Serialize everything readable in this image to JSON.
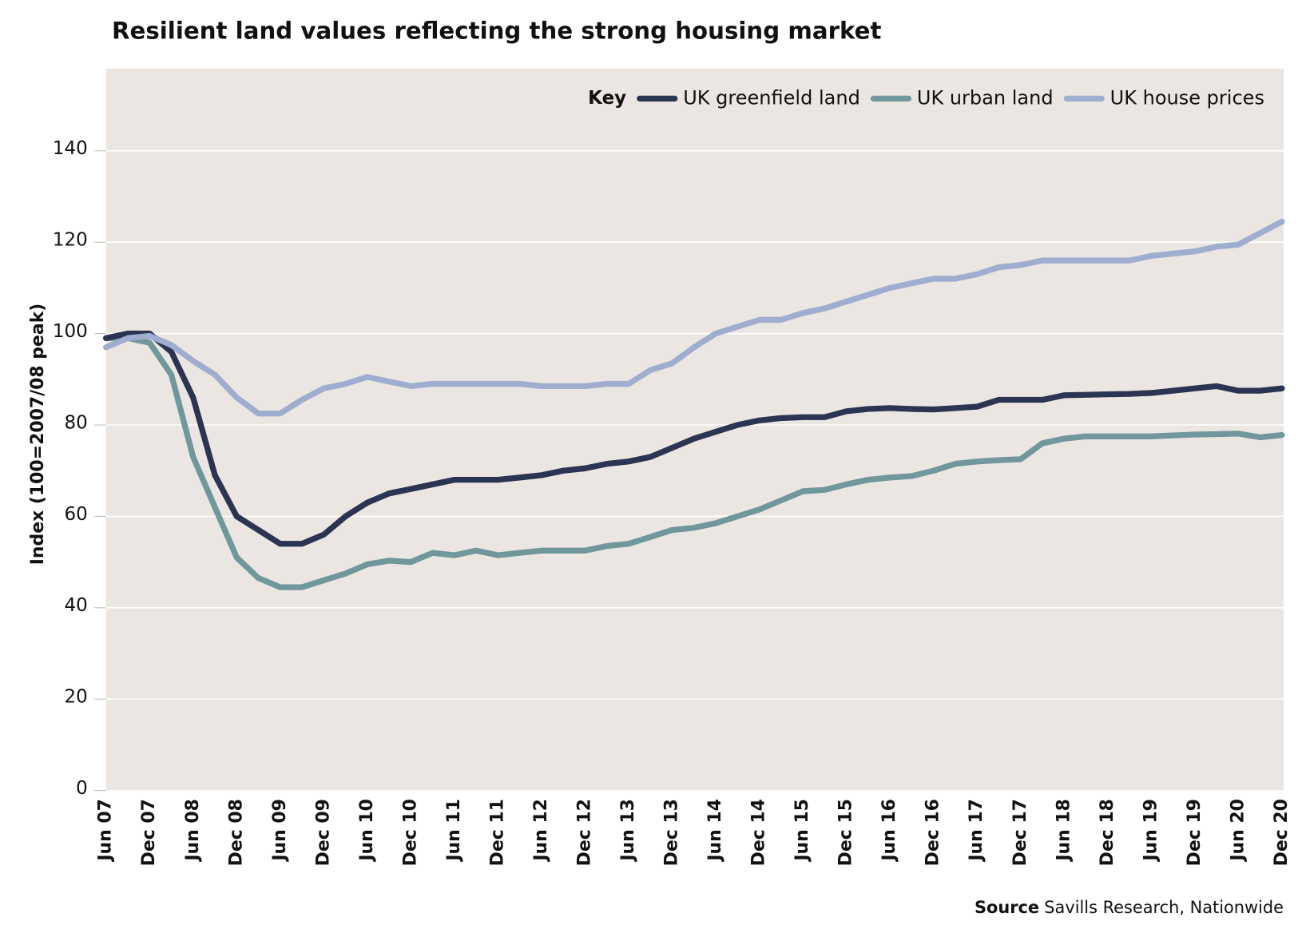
{
  "chart_data": {
    "type": "line",
    "title": "Resilient land values reflecting the strong housing market",
    "y_label": "Index (100=2007/08 peak)",
    "legend_title": "Key",
    "legend": "top-right",
    "source_label": "Source",
    "source_text": "Savills Research, Nationwide",
    "grid": true,
    "background": "#ece6e2",
    "ylim": [
      0,
      158
    ],
    "yticks": [
      0,
      20,
      40,
      60,
      80,
      100,
      120,
      140
    ],
    "categories": [
      "Jun 07",
      null,
      "Dec 07",
      null,
      "Jun 08",
      null,
      "Dec 08",
      null,
      "Jun 09",
      null,
      "Dec 09",
      null,
      "Jun 10",
      null,
      "Dec 10",
      null,
      "Jun 11",
      null,
      "Dec 11",
      null,
      "Jun 12",
      null,
      "Dec 12",
      null,
      "Jun 13",
      null,
      "Dec 13",
      null,
      "Jun 14",
      null,
      "Dec 14",
      null,
      "Jun 15",
      null,
      "Dec 15",
      null,
      "Jun 16",
      null,
      "Dec 16",
      null,
      "Jun 17",
      null,
      "Dec 17",
      null,
      "Jun 18",
      null,
      "Dec 18",
      null,
      "Jun 19",
      null,
      "Dec 19",
      null,
      "Jun 20",
      null,
      "Dec 20"
    ],
    "series": [
      {
        "name": "UK greenfield land",
        "color": "#2b3452",
        "values": [
          99,
          100,
          100,
          96,
          86,
          69,
          60,
          57,
          54,
          54,
          56,
          60,
          63,
          65,
          66,
          67,
          68,
          68,
          68,
          68.5,
          69,
          70,
          70.5,
          71.5,
          72,
          73,
          75,
          77,
          78.5,
          80,
          81,
          81.5,
          81.7,
          81.7,
          83,
          83.5,
          83.7,
          83.5,
          83.4,
          83.7,
          84,
          85.5,
          85.5,
          85.5,
          86.5,
          86.6,
          86.7,
          86.8,
          87,
          87.5,
          88,
          88.5,
          87.5,
          87.5,
          88
        ]
      },
      {
        "name": "UK urban land",
        "color": "#6f979c",
        "values": [
          99,
          99,
          98,
          91,
          73,
          62,
          51,
          46.5,
          44.5,
          44.5,
          46,
          47.5,
          49.5,
          50.3,
          50,
          52,
          51.5,
          52.5,
          51.5,
          52,
          52.5,
          52.5,
          52.5,
          53.5,
          54,
          55.5,
          57,
          57.5,
          58.5,
          60,
          61.5,
          63.5,
          65.5,
          65.8,
          67,
          68,
          68.5,
          68.8,
          70,
          71.5,
          72,
          72.3,
          72.5,
          76,
          77,
          77.5,
          77.5,
          77.5,
          77.5,
          77.7,
          77.9,
          78,
          78.1,
          77.3,
          77.8
        ]
      },
      {
        "name": "UK house prices",
        "color": "#9eadd0",
        "values": [
          97,
          99,
          99.5,
          97.5,
          94,
          91,
          86,
          82.5,
          82.5,
          85.5,
          88,
          89,
          90.5,
          89.5,
          88.5,
          89,
          89,
          89,
          89,
          89,
          88.5,
          88.5,
          88.5,
          89,
          89,
          92,
          93.5,
          97,
          100,
          101.5,
          103,
          103,
          104.5,
          105.5,
          107,
          108.5,
          110,
          111,
          112,
          112,
          113,
          114.5,
          115,
          116,
          116,
          116,
          116,
          116,
          117,
          117.5,
          118,
          119,
          119.5,
          122,
          124.5
        ]
      }
    ]
  }
}
